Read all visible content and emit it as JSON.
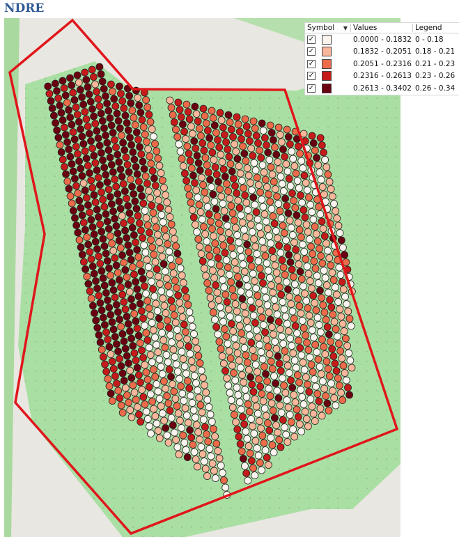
{
  "title": "NDRE",
  "legend": {
    "headers": {
      "symbol": "Symbol",
      "values": "Values",
      "legend": "Legend"
    },
    "rows": [
      {
        "values": "0.0000 - 0.1832",
        "legend": "0 - 0.18",
        "color": "#fbf4ee"
      },
      {
        "values": "0.1832 - 0.2051",
        "legend": "0.18 - 0.21",
        "color": "#f8b79a"
      },
      {
        "values": "0.2051 - 0.2316",
        "legend": "0.21 - 0.23",
        "color": "#ec6b4a"
      },
      {
        "values": "0.2316 - 0.2613",
        "legend": "0.23 - 0.26",
        "color": "#c51b1b"
      },
      {
        "values": "0.2613 - 0.3402",
        "legend": "0.26 - 0.34",
        "color": "#6b0010"
      }
    ]
  },
  "colors": {
    "field_green": "#aadfa4",
    "basemap_gray": "#e9e7e2",
    "boundary_red": "#e0161b"
  },
  "icons": {
    "sort": "sort-down-icon",
    "checkbox": "checkbox-checked-icon"
  }
}
